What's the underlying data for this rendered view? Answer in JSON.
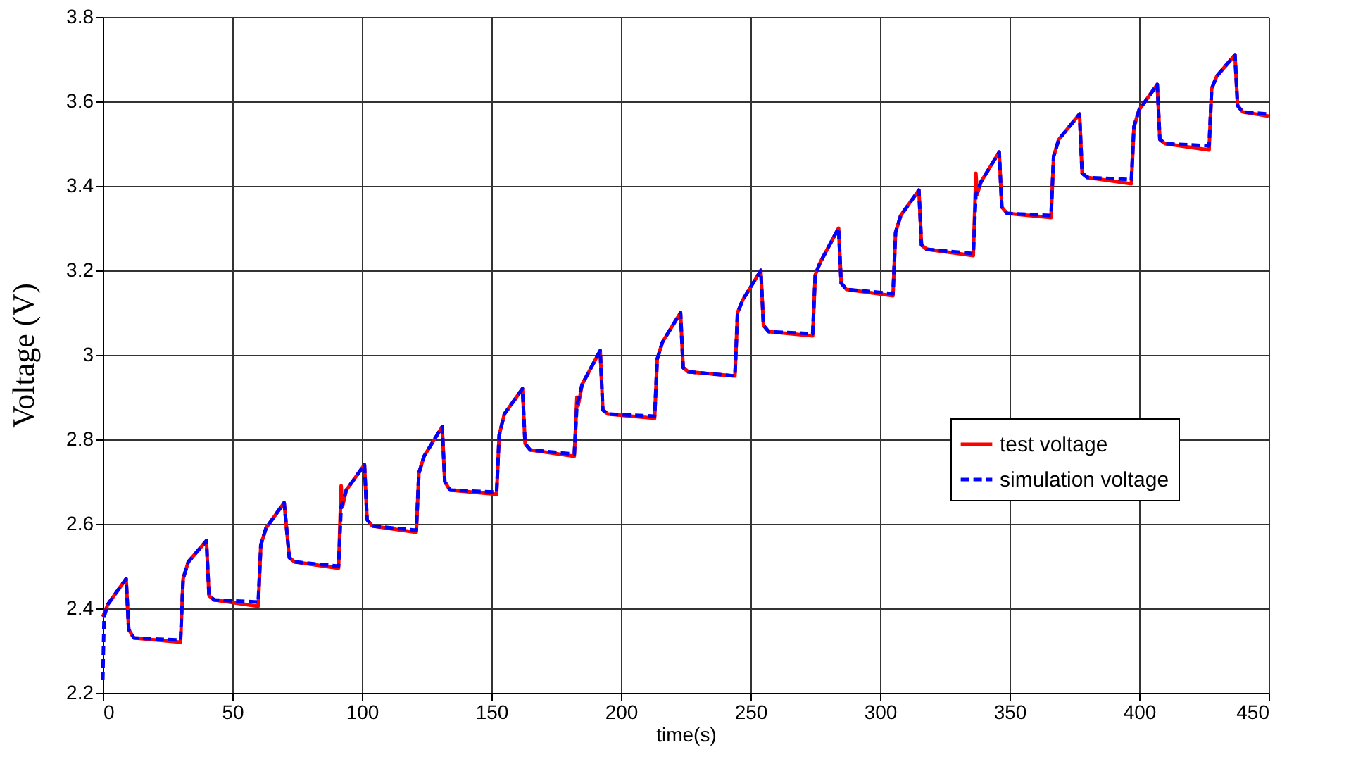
{
  "chart_data": {
    "type": "line",
    "xlabel": "time(s)",
    "ylabel": "Voltage (V)",
    "xlim": [
      0,
      450
    ],
    "xticks": [
      0,
      50,
      100,
      150,
      200,
      250,
      300,
      350,
      400,
      450
    ],
    "ylim": [
      2.2,
      3.8
    ],
    "yticks": [
      2.2,
      2.4,
      2.6,
      2.8,
      3,
      3.2,
      3.4,
      3.6,
      3.8
    ],
    "grid": true,
    "legend": "right",
    "series": [
      {
        "name": "test voltage",
        "color": "#ff0000",
        "line_style": "solid",
        "x": [
          0,
          2,
          9,
          10,
          12,
          30,
          31,
          33,
          40,
          41,
          43,
          60,
          61,
          63,
          70,
          72,
          74,
          91,
          92,
          92.5,
          94,
          101,
          102,
          104,
          121,
          122,
          124,
          131,
          132,
          134,
          152,
          153,
          155,
          162,
          163,
          165,
          182,
          183,
          183.5,
          185,
          192,
          193,
          195,
          213,
          214,
          216,
          223,
          224,
          226,
          244,
          245,
          247,
          254,
          255,
          257,
          274,
          275,
          277,
          284,
          285,
          287,
          305,
          306,
          308,
          315,
          316,
          318,
          336,
          337,
          337.5,
          339,
          346,
          347,
          349,
          366,
          367,
          369,
          377,
          378,
          380,
          397,
          398,
          400,
          407,
          408,
          410,
          427,
          428,
          430,
          437,
          438,
          440,
          450
        ],
        "values": [
          2.38,
          2.41,
          2.47,
          2.35,
          2.33,
          2.32,
          2.47,
          2.51,
          2.56,
          2.43,
          2.42,
          2.405,
          2.55,
          2.59,
          2.65,
          2.52,
          2.51,
          2.495,
          2.69,
          2.64,
          2.68,
          2.74,
          2.61,
          2.595,
          2.58,
          2.72,
          2.76,
          2.83,
          2.7,
          2.68,
          2.67,
          2.81,
          2.86,
          2.92,
          2.79,
          2.775,
          2.76,
          2.9,
          2.88,
          2.93,
          3.01,
          2.87,
          2.86,
          2.85,
          2.99,
          3.03,
          3.1,
          2.97,
          2.96,
          2.95,
          3.1,
          3.13,
          3.2,
          3.07,
          3.055,
          3.045,
          3.19,
          3.22,
          3.3,
          3.17,
          3.155,
          3.14,
          3.29,
          3.33,
          3.39,
          3.26,
          3.25,
          3.235,
          3.43,
          3.38,
          3.41,
          3.48,
          3.35,
          3.335,
          3.325,
          3.47,
          3.51,
          3.57,
          3.43,
          3.42,
          3.405,
          3.54,
          3.58,
          3.64,
          3.51,
          3.5,
          3.485,
          3.63,
          3.66,
          3.71,
          3.59,
          3.575,
          3.565
        ]
      },
      {
        "name": "simulation voltage",
        "color": "#0000ff",
        "line_style": "dashed",
        "x": [
          0,
          0.5,
          2,
          9,
          10,
          12,
          30,
          31,
          33,
          40,
          41,
          43,
          60,
          61,
          63,
          70,
          72,
          74,
          91,
          92,
          94,
          101,
          102,
          104,
          121,
          122,
          124,
          131,
          132,
          134,
          152,
          153,
          155,
          162,
          163,
          165,
          182,
          183,
          185,
          192,
          193,
          195,
          213,
          214,
          216,
          223,
          224,
          226,
          244,
          245,
          247,
          254,
          255,
          257,
          274,
          275,
          277,
          284,
          285,
          287,
          305,
          306,
          308,
          315,
          316,
          318,
          336,
          337,
          339,
          346,
          347,
          349,
          366,
          367,
          369,
          377,
          378,
          380,
          397,
          398,
          400,
          407,
          408,
          410,
          427,
          428,
          430,
          437,
          438,
          440,
          450
        ],
        "values": [
          2.23,
          2.38,
          2.41,
          2.47,
          2.35,
          2.33,
          2.325,
          2.47,
          2.51,
          2.56,
          2.43,
          2.42,
          2.415,
          2.55,
          2.59,
          2.65,
          2.52,
          2.51,
          2.5,
          2.64,
          2.68,
          2.74,
          2.61,
          2.595,
          2.585,
          2.72,
          2.76,
          2.83,
          2.7,
          2.68,
          2.675,
          2.81,
          2.86,
          2.92,
          2.79,
          2.775,
          2.765,
          2.88,
          2.93,
          3.01,
          2.87,
          2.86,
          2.855,
          2.99,
          3.03,
          3.1,
          2.97,
          2.96,
          2.95,
          3.1,
          3.13,
          3.2,
          3.07,
          3.055,
          3.05,
          3.19,
          3.22,
          3.3,
          3.17,
          3.155,
          3.145,
          3.29,
          3.33,
          3.39,
          3.26,
          3.25,
          3.24,
          3.38,
          3.41,
          3.48,
          3.35,
          3.335,
          3.33,
          3.47,
          3.51,
          3.57,
          3.43,
          3.42,
          3.415,
          3.54,
          3.58,
          3.64,
          3.51,
          3.5,
          3.495,
          3.63,
          3.66,
          3.71,
          3.59,
          3.575,
          3.57
        ]
      }
    ]
  }
}
